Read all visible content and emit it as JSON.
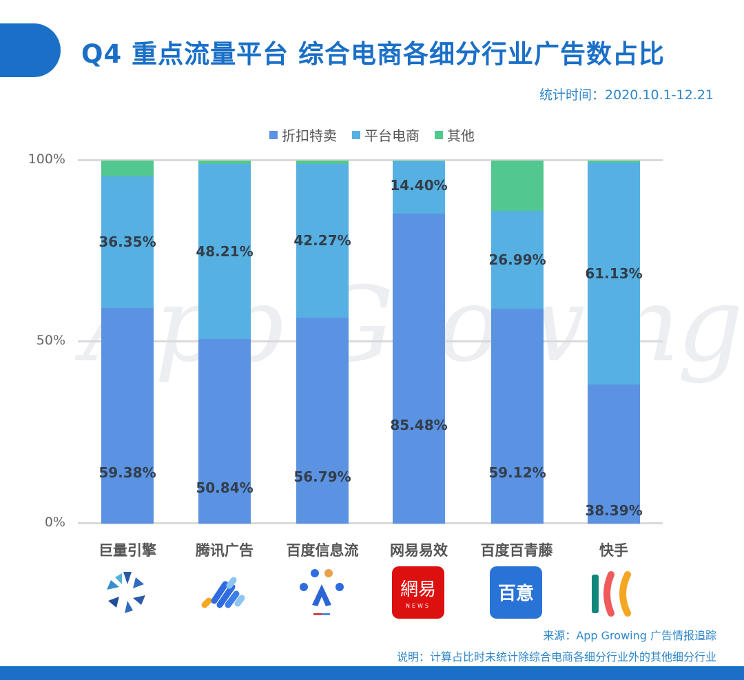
{
  "header": {
    "title": "Q4 重点流量平台 综合电商各细分行业广告数占比",
    "stat_time": "统计时间：2020.10.1-12.21"
  },
  "legend": [
    {
      "label": "折扣特卖",
      "color": "#5b93e2"
    },
    {
      "label": "平台电商",
      "color": "#56b1e2"
    },
    {
      "label": "其他",
      "color": "#52c78f"
    }
  ],
  "y_axis": {
    "ticks": [
      "100%",
      "50%",
      "0%"
    ]
  },
  "watermark": "App Growing",
  "categories": [
    {
      "name": "巨量引擎",
      "logo": "ocean-engine-logo"
    },
    {
      "name": "腾讯广告",
      "logo": "tencent-ads-logo"
    },
    {
      "name": "百度信息流",
      "logo": "baidu-feed-logo"
    },
    {
      "name": "网易易效",
      "logo": "netease-logo"
    },
    {
      "name": "百度百青藤",
      "logo": "baidu-baiyi-logo"
    },
    {
      "name": "快手",
      "logo": "kuaishou-logo"
    }
  ],
  "logo_text": {
    "netease_main": "網易",
    "netease_sub": "NEWS",
    "baiyi": "百意"
  },
  "chart_data": {
    "type": "bar",
    "stacked": true,
    "title": "Q4 重点流量平台 综合电商各细分行业广告数占比",
    "subtitle": "统计时间：2020.10.1-12.21",
    "xlabel": "",
    "ylabel": "",
    "ylim": [
      0,
      100
    ],
    "yticks": [
      "0%",
      "50%",
      "100%"
    ],
    "grid": true,
    "legend_position": "top",
    "categories": [
      "巨量引擎",
      "腾讯广告",
      "百度信息流",
      "网易易效",
      "百度百青藤",
      "快手"
    ],
    "series": [
      {
        "name": "折扣特卖",
        "values": [
          59.38,
          50.84,
          56.79,
          85.48,
          59.12,
          38.39
        ],
        "labels": [
          "59.38%",
          "50.84%",
          "56.79%",
          "85.48%",
          "59.12%",
          "38.39%"
        ]
      },
      {
        "name": "平台电商",
        "values": [
          36.35,
          48.21,
          42.27,
          14.4,
          26.99,
          61.13
        ],
        "labels": [
          "36.35%",
          "48.21%",
          "42.27%",
          "14.40%",
          "26.99%",
          "61.13%"
        ]
      },
      {
        "name": "其他",
        "values": [
          4.27,
          0.95,
          0.94,
          0.12,
          13.89,
          0.48
        ],
        "labels": [
          "",
          "",
          "",
          "",
          "",
          ""
        ]
      }
    ]
  },
  "footer": {
    "source": "来源：App Growing 广告情报追踪",
    "note": "说明：计算占比时未统计除综合电商各细分行业外的其他细分行业"
  }
}
